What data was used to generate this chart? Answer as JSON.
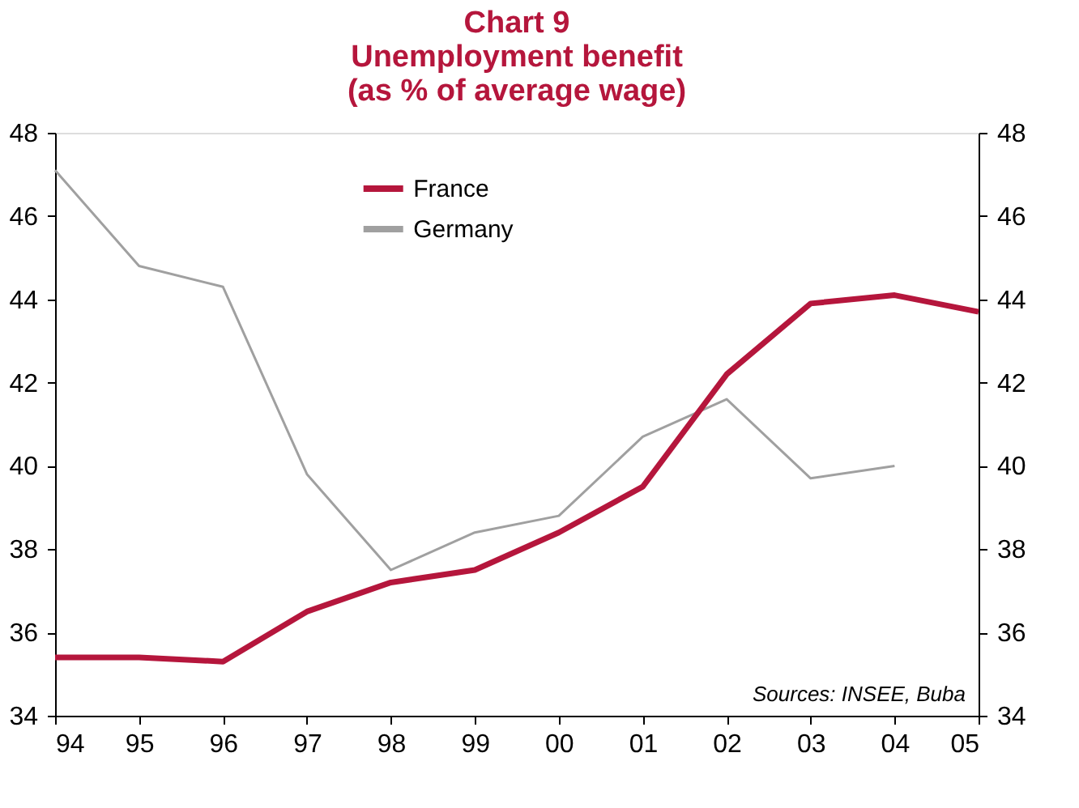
{
  "chart_data": {
    "type": "line",
    "title": "Chart 9\nUnemployment benefit\n(as % of average wage)",
    "categories": [
      "94",
      "95",
      "96",
      "97",
      "98",
      "99",
      "00",
      "01",
      "02",
      "03",
      "04",
      "05"
    ],
    "series": [
      {
        "name": "France",
        "color": "#b5163c",
        "values": [
          35.4,
          35.4,
          35.3,
          36.5,
          37.2,
          37.5,
          38.4,
          39.5,
          42.2,
          43.9,
          44.1,
          43.7
        ]
      },
      {
        "name": "Germany",
        "color": "#a0a0a0",
        "values": [
          47.1,
          44.8,
          44.3,
          39.8,
          37.5,
          38.4,
          38.8,
          40.7,
          41.6,
          39.7,
          40.0,
          null
        ]
      }
    ],
    "ylim": [
      34,
      48
    ],
    "yticks": [
      34,
      36,
      38,
      40,
      42,
      44,
      46,
      48
    ],
    "y2lim": [
      34,
      48
    ],
    "y2ticks": [
      34,
      36,
      38,
      40,
      42,
      44,
      46,
      48
    ],
    "grid": false,
    "legend": "top",
    "line_style": "solid",
    "marker": "none",
    "annotations": [
      "Sources: INSEE, Buba"
    ]
  }
}
